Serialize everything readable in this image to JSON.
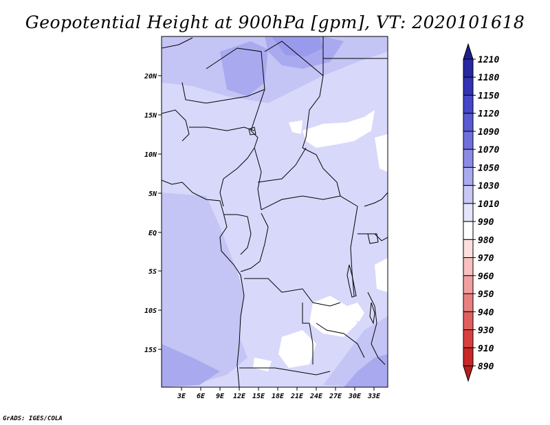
{
  "title": "Geopotential Height at 900hPa [gpm], VT: 2020101618",
  "credit": "GrADS: IGES/COLA",
  "colors": {
    "background": "#ffffff",
    "shade_low": "#d8d8fb",
    "shade_mid": "#c4c4f5",
    "shade_high": "#a9a9ef",
    "shade_top": "#9a9aec",
    "boundary": "#000000"
  },
  "map": {
    "lat_labels": [
      "20N",
      "15N",
      "10N",
      "5N",
      "EQ",
      "5S",
      "10S",
      "15S"
    ],
    "lon_labels": [
      "3E",
      "6E",
      "9E",
      "12E",
      "15E",
      "18E",
      "21E",
      "24E",
      "27E",
      "30E",
      "33E"
    ]
  },
  "colorbar": {
    "levels": [
      "1210",
      "1180",
      "1150",
      "1120",
      "1090",
      "1070",
      "1050",
      "1030",
      "1010",
      "990",
      "980",
      "970",
      "960",
      "950",
      "940",
      "930",
      "910",
      "890"
    ],
    "colors": [
      "#1e1e8c",
      "#2828a0",
      "#3232b4",
      "#4646c8",
      "#5a5ad2",
      "#7070dc",
      "#8c8ce6",
      "#aaaaf0",
      "#c8c8f5",
      "#e4e4fa",
      "#ffffff",
      "#fce0e0",
      "#f8c0c0",
      "#f0a0a0",
      "#e88080",
      "#e06060",
      "#d84040",
      "#c82828",
      "#b41e1e"
    ]
  }
}
